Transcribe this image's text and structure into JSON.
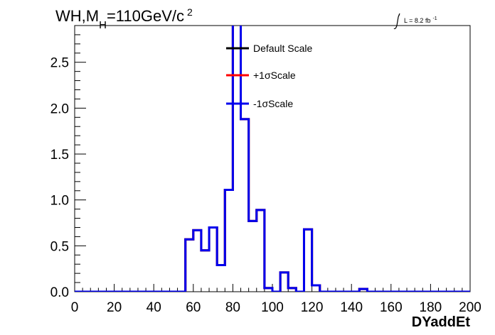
{
  "chart_data": {
    "type": "line",
    "title_main": "WH,M",
    "title_sub": "H",
    "title_tail": "=110GeV/c",
    "title_sup": "2",
    "lumi_label": "L = 8.2 fb",
    "lumi_sup": "-1",
    "xlabel": "DYaddEt",
    "ylabel": "",
    "xlim": [
      0,
      200
    ],
    "ylim": [
      0,
      2.9
    ],
    "x_ticks": [
      "0",
      "20",
      "40",
      "60",
      "80",
      "100",
      "120",
      "140",
      "160",
      "180",
      "200"
    ],
    "y_ticks": [
      "0.0",
      "0.5",
      "1.0",
      "1.5",
      "2.0",
      "2.5"
    ],
    "bin_edges": [
      0,
      4,
      8,
      12,
      16,
      20,
      24,
      28,
      32,
      36,
      40,
      44,
      48,
      52,
      56,
      60,
      64,
      68,
      72,
      76,
      80,
      84,
      88,
      92,
      96,
      100,
      104,
      108,
      112,
      116,
      120,
      124,
      128,
      132,
      136,
      140,
      144,
      148,
      152,
      156,
      160,
      164,
      168,
      172,
      176,
      180,
      184,
      188,
      192,
      196,
      200
    ],
    "series": [
      {
        "name": "Default Scale",
        "color": "#000000",
        "values": [
          0,
          0,
          0,
          0,
          0,
          0,
          0,
          0,
          0,
          0,
          0,
          0,
          0,
          0,
          0.57,
          0.67,
          0.45,
          0.7,
          0.29,
          1.11,
          3.1,
          1.88,
          0.77,
          0.89,
          0.04,
          0,
          0.21,
          0.04,
          0,
          0.68,
          0.07,
          0,
          0,
          0,
          0,
          0,
          0.03,
          0,
          0,
          0,
          0,
          0,
          0,
          0,
          0,
          0,
          0,
          0,
          0,
          0
        ]
      },
      {
        "name": "+1σScale",
        "color": "#ff0000",
        "values": [
          0,
          0,
          0,
          0,
          0,
          0,
          0,
          0,
          0,
          0,
          0,
          0,
          0,
          0,
          0.57,
          0.67,
          0.45,
          0.7,
          0.29,
          1.11,
          3.1,
          1.88,
          0.77,
          0.89,
          0.04,
          0,
          0.21,
          0.04,
          0,
          0.68,
          0.07,
          0,
          0,
          0,
          0,
          0,
          0.03,
          0,
          0,
          0,
          0,
          0,
          0,
          0,
          0,
          0,
          0,
          0,
          0,
          0
        ]
      },
      {
        "name": "-1σScale",
        "color": "#0000ee",
        "values": [
          0,
          0,
          0,
          0,
          0,
          0,
          0,
          0,
          0,
          0,
          0,
          0,
          0,
          0,
          0.57,
          0.67,
          0.45,
          0.7,
          0.29,
          1.11,
          3.1,
          1.88,
          0.77,
          0.89,
          0.04,
          0,
          0.21,
          0.04,
          0,
          0.68,
          0.07,
          0,
          0,
          0,
          0,
          0,
          0.03,
          0,
          0,
          0,
          0,
          0,
          0,
          0,
          0,
          0,
          0,
          0,
          0,
          0
        ]
      }
    ],
    "legend_position": "top-center",
    "grid": false
  }
}
